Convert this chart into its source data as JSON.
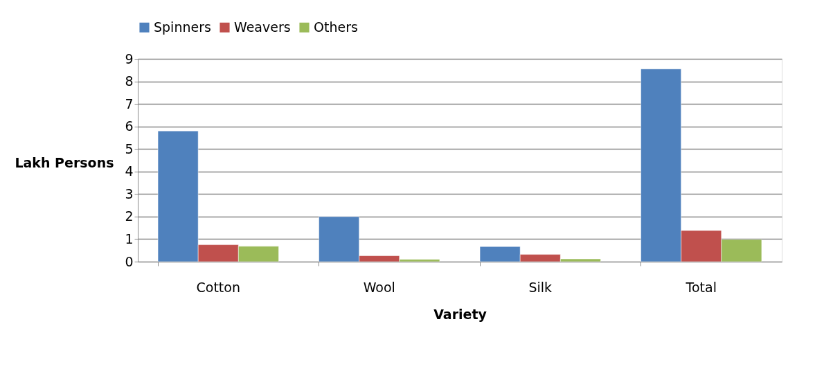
{
  "chart_data": {
    "type": "bar",
    "xlabel": "Variety",
    "ylabel": "Lakh Persons",
    "categories": [
      "Cotton",
      "Wool",
      "Silk",
      "Total"
    ],
    "series": [
      {
        "name": "Spinners",
        "color": "#4f81bd",
        "values": [
          5.8,
          2.0,
          0.67,
          8.55
        ]
      },
      {
        "name": "Weavers",
        "color": "#c0504d",
        "values": [
          0.75,
          0.26,
          0.32,
          1.38
        ]
      },
      {
        "name": "Others",
        "color": "#9bbb59",
        "values": [
          0.68,
          0.1,
          0.12,
          0.98
        ]
      }
    ],
    "ylim": [
      0,
      9
    ],
    "yticks": [
      0,
      1,
      2,
      3,
      4,
      5,
      6,
      7,
      8,
      9
    ],
    "grid": "y",
    "legend": "top"
  }
}
